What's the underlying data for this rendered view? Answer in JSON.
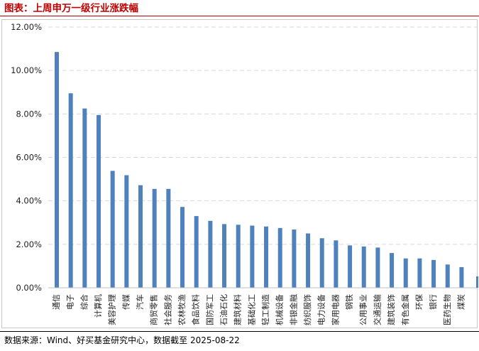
{
  "title": "图表：上周申万一级行业涨跌幅",
  "source": "数据来源：Wind、好买基金研究中心，数据截至 2025-08-22",
  "colors": {
    "bar": "#4f81bd",
    "title": "#c00000",
    "grid": "#d9d9d9"
  },
  "chart_data": {
    "type": "bar",
    "title": "上周申万一级行业涨跌幅",
    "xlabel": "",
    "ylabel": "",
    "ylim": [
      0,
      12
    ],
    "ytick_values": [
      0,
      2,
      4,
      6,
      8,
      10,
      12
    ],
    "yticks": [
      "0.00%",
      "2.00%",
      "4.00%",
      "6.00%",
      "8.00%",
      "10.00%",
      "12.00%"
    ],
    "grid": "horizontal dashed",
    "categories": [
      "通信",
      "电子",
      "综合",
      "计算机",
      "美容护理",
      "传媒",
      "汽车",
      "商贸零售",
      "社会服务",
      "农林牧渔",
      "食品饮料",
      "国防军工",
      "石油石化",
      "建筑材料",
      "基础化工",
      "轻工制造",
      "机械设备",
      "非银金融",
      "纺织服饰",
      "电力设备",
      "家用电器",
      "钢铁",
      "公用事业",
      "交通运输",
      "建筑装饰",
      "有色金属",
      "环保",
      "银行",
      "医药生物",
      "煤炭"
    ],
    "values": [
      10.85,
      8.95,
      8.25,
      7.95,
      5.38,
      5.18,
      4.72,
      4.55,
      4.55,
      3.72,
      3.3,
      3.08,
      2.93,
      2.9,
      2.86,
      2.82,
      2.75,
      2.68,
      2.5,
      2.28,
      2.18,
      1.95,
      1.9,
      1.85,
      1.6,
      1.35,
      1.35,
      1.28,
      1.07,
      0.95
    ],
    "unit": "%"
  }
}
